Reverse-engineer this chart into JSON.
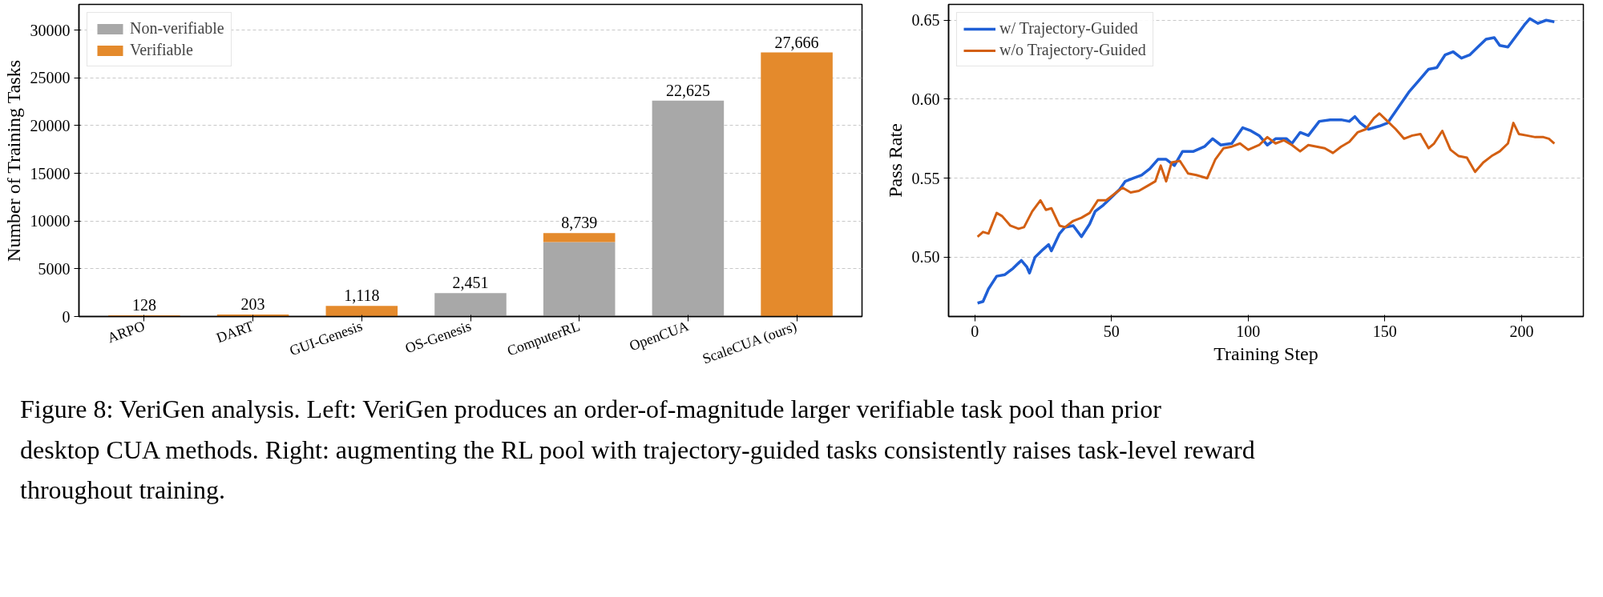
{
  "chart_data": [
    {
      "type": "bar",
      "stacked": true,
      "ylabel": "Number of Training Tasks",
      "categories": [
        "ARPO",
        "DART",
        "GUI-Genesis",
        "OS-Genesis",
        "ComputerRL",
        "OpenCUA",
        "ScaleCUA (ours)"
      ],
      "series": [
        {
          "name": "Non-verifiable",
          "color": "#a8a8a8",
          "values": [
            0,
            0,
            0,
            2451,
            7800,
            22625,
            0
          ]
        },
        {
          "name": "Verifiable",
          "color": "#e48a2c",
          "values": [
            128,
            203,
            1118,
            0,
            939,
            0,
            27666
          ]
        }
      ],
      "totals": [
        "128",
        "203",
        "1,118",
        "2,451",
        "8,739",
        "22,625",
        "27,666"
      ],
      "ylim": [
        0,
        32700
      ],
      "yticks": [
        0,
        5000,
        10000,
        15000,
        20000,
        25000,
        30000
      ],
      "grid": "y",
      "legend": "top left",
      "annotations": [
        "Figure 8: VeriGen analysis. Left: VeriGen produces an order-of-magnitude larger verifiable task pool than prior desktop CUA methods. Right: augmenting the RL pool with trajectory-guided tasks consistently raises task-level reward throughout training."
      ]
    },
    {
      "type": "line",
      "xlabel": "Training Step",
      "ylabel": "Pass Rate",
      "xlim": [
        -9.6,
        222.6
      ],
      "xticks": [
        0,
        50,
        100,
        150,
        200
      ],
      "ylim": [
        0.4625,
        0.66
      ],
      "yticks": [
        {
          "value": 0.5,
          "label": "0.50"
        },
        0.55,
        {
          "value": 0.6,
          "label": "0.60"
        },
        0.65
      ],
      "grid": "y",
      "legend": "top left",
      "line_style": "solid",
      "series": [
        {
          "name": "w/ Trajectory-Guided",
          "color": "#1f5fd6",
          "x": [
            1,
            3,
            5,
            8,
            11,
            14,
            17,
            19,
            20,
            22,
            25,
            27,
            28,
            31,
            33,
            36,
            39,
            42,
            44,
            47,
            50,
            53,
            55,
            58,
            61,
            64,
            67,
            70,
            73,
            76,
            80,
            84,
            87,
            90,
            94,
            98,
            101,
            104,
            107,
            110,
            114,
            116,
            119,
            122,
            126,
            130,
            134,
            137,
            139,
            141,
            144,
            148,
            151,
            155,
            159,
            163,
            166,
            169,
            172,
            175,
            178,
            181,
            184,
            187,
            190,
            192,
            195,
            198,
            201,
            203,
            206,
            209,
            212
          ],
          "values": [
            0.471,
            0.472,
            0.48,
            0.488,
            0.489,
            0.493,
            0.498,
            0.494,
            0.49,
            0.5,
            0.505,
            0.508,
            0.504,
            0.515,
            0.519,
            0.52,
            0.513,
            0.521,
            0.529,
            0.533,
            0.538,
            0.543,
            0.548,
            0.55,
            0.552,
            0.556,
            0.562,
            0.562,
            0.558,
            0.567,
            0.567,
            0.57,
            0.575,
            0.571,
            0.572,
            0.582,
            0.58,
            0.577,
            0.571,
            0.575,
            0.575,
            0.572,
            0.579,
            0.577,
            0.586,
            0.587,
            0.587,
            0.586,
            0.589,
            0.585,
            0.581,
            0.583,
            0.585,
            0.595,
            0.605,
            0.613,
            0.619,
            0.62,
            0.628,
            0.63,
            0.626,
            0.628,
            0.633,
            0.638,
            0.639,
            0.634,
            0.633,
            0.64,
            0.647,
            0.651,
            0.648,
            0.65,
            0.649
          ]
        },
        {
          "name": "w/o Trajectory-Guided",
          "color": "#d35f12",
          "x": [
            1,
            3,
            5,
            8,
            10,
            13,
            16,
            18,
            21,
            24,
            26,
            28,
            31,
            33,
            36,
            39,
            42,
            45,
            48,
            51,
            54,
            57,
            60,
            63,
            66,
            68,
            70,
            72,
            75,
            78,
            81,
            85,
            88,
            91,
            94,
            97,
            100,
            104,
            107,
            110,
            113,
            116,
            119,
            122,
            125,
            128,
            131,
            134,
            137,
            140,
            143,
            146,
            148,
            151,
            154,
            157,
            160,
            163,
            166,
            168,
            171,
            174,
            177,
            180,
            183,
            186,
            189,
            192,
            195,
            197,
            199,
            202,
            205,
            208,
            210,
            212
          ],
          "values": [
            0.513,
            0.516,
            0.515,
            0.528,
            0.526,
            0.52,
            0.518,
            0.519,
            0.529,
            0.536,
            0.53,
            0.531,
            0.52,
            0.519,
            0.523,
            0.525,
            0.528,
            0.536,
            0.536,
            0.54,
            0.544,
            0.541,
            0.542,
            0.545,
            0.548,
            0.558,
            0.548,
            0.56,
            0.561,
            0.553,
            0.552,
            0.55,
            0.562,
            0.569,
            0.57,
            0.572,
            0.568,
            0.571,
            0.576,
            0.572,
            0.574,
            0.571,
            0.567,
            0.571,
            0.57,
            0.569,
            0.566,
            0.57,
            0.573,
            0.579,
            0.581,
            0.588,
            0.591,
            0.586,
            0.581,
            0.575,
            0.577,
            0.578,
            0.569,
            0.572,
            0.58,
            0.568,
            0.564,
            0.563,
            0.554,
            0.56,
            0.564,
            0.567,
            0.572,
            0.585,
            0.578,
            0.577,
            0.576,
            0.576,
            0.575,
            0.572
          ]
        }
      ]
    }
  ]
}
